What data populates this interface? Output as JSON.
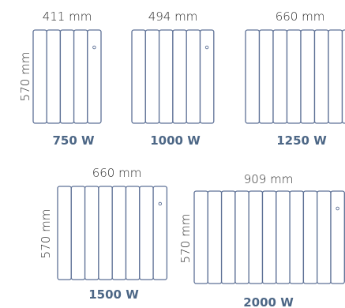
{
  "radiators": [
    {
      "width_label": "411 mm",
      "height_label": "570 mm",
      "power_label": "750 W",
      "fins": 5,
      "color": "#5e7196"
    },
    {
      "width_label": "494 mm",
      "height_label": "",
      "power_label": "1000 W",
      "fins": 6,
      "color": "#5e7196"
    },
    {
      "width_label": "660 mm",
      "height_label": "",
      "power_label": "1250 W",
      "fins": 8,
      "color": "#5e7196"
    },
    {
      "width_label": "660 mm",
      "height_label": "570 mm",
      "power_label": "1500 W",
      "fins": 8,
      "color": "#5e7196"
    },
    {
      "width_label": "909 mm",
      "height_label": "570 mm",
      "power_label": "2000 W",
      "fins": 11,
      "color": "#5e7196"
    }
  ],
  "colors": {
    "outline": "#5e7196",
    "power_text": "#4d6786",
    "dimension_text": "#2b2b2b"
  }
}
